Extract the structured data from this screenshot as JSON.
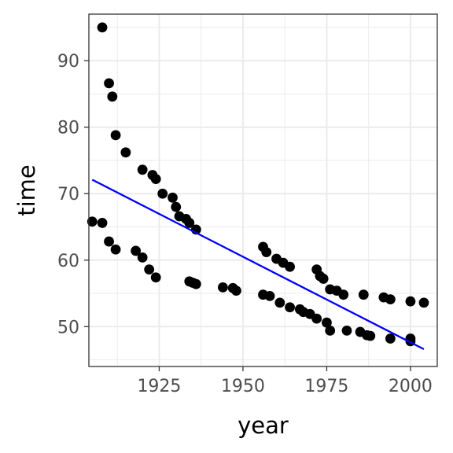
{
  "chart_data": {
    "type": "scatter",
    "title": "",
    "xlabel": "year",
    "ylabel": "time",
    "xlim": [
      1904,
      2008
    ],
    "ylim": [
      44,
      97
    ],
    "xticks": [
      1925,
      1950,
      1975,
      2000
    ],
    "xticks_minor": [
      1912.5,
      1937.5,
      1962.5,
      1987.5
    ],
    "yticks": [
      50,
      60,
      70,
      80,
      90
    ],
    "yticks_minor": [
      45,
      55,
      65,
      75,
      85,
      95
    ],
    "xtick_labels": [
      "1925",
      "1950",
      "1975",
      "2000"
    ],
    "ytick_labels": [
      "50",
      "60",
      "70",
      "80",
      "90"
    ],
    "grid": true,
    "legend": "none",
    "point_color": "#000000",
    "series": [
      {
        "values": [
          {
            "x": 1905,
            "y": 65.8
          },
          {
            "x": 1908,
            "y": 65.6
          },
          {
            "x": 1910,
            "y": 62.8
          },
          {
            "x": 1912,
            "y": 61.6
          },
          {
            "x": 1918,
            "y": 61.4
          },
          {
            "x": 1920,
            "y": 60.4
          },
          {
            "x": 1922,
            "y": 58.6
          },
          {
            "x": 1924,
            "y": 57.4
          },
          {
            "x": 1934,
            "y": 56.8
          },
          {
            "x": 1935,
            "y": 56.6
          },
          {
            "x": 1936,
            "y": 56.4
          },
          {
            "x": 1944,
            "y": 55.9
          },
          {
            "x": 1947,
            "y": 55.8
          },
          {
            "x": 1948,
            "y": 55.4
          },
          {
            "x": 1956,
            "y": 54.8
          },
          {
            "x": 1958,
            "y": 54.6
          },
          {
            "x": 1961,
            "y": 53.6
          },
          {
            "x": 1964,
            "y": 52.9
          },
          {
            "x": 1967,
            "y": 52.6
          },
          {
            "x": 1968,
            "y": 52.2
          },
          {
            "x": 1970,
            "y": 51.9
          },
          {
            "x": 1972,
            "y": 51.2
          },
          {
            "x": 1975,
            "y": 50.6
          },
          {
            "x": 1976,
            "y": 49.4
          },
          {
            "x": 1981,
            "y": 49.4
          },
          {
            "x": 1985,
            "y": 49.2
          },
          {
            "x": 1987,
            "y": 48.7
          },
          {
            "x": 1988,
            "y": 48.6
          },
          {
            "x": 1994,
            "y": 48.2
          },
          {
            "x": 2000,
            "y": 47.8
          },
          {
            "x": 2000,
            "y": 48.2
          },
          {
            "x": 1908,
            "y": 95.0
          },
          {
            "x": 1910,
            "y": 86.6
          },
          {
            "x": 1911,
            "y": 84.6
          },
          {
            "x": 1912,
            "y": 78.8
          },
          {
            "x": 1915,
            "y": 76.2
          },
          {
            "x": 1920,
            "y": 73.6
          },
          {
            "x": 1923,
            "y": 72.8
          },
          {
            "x": 1924,
            "y": 72.2
          },
          {
            "x": 1926,
            "y": 70.0
          },
          {
            "x": 1929,
            "y": 69.4
          },
          {
            "x": 1930,
            "y": 68.0
          },
          {
            "x": 1931,
            "y": 66.6
          },
          {
            "x": 1933,
            "y": 66.2
          },
          {
            "x": 1934,
            "y": 65.6
          },
          {
            "x": 1936,
            "y": 64.6
          },
          {
            "x": 1956,
            "y": 62.0
          },
          {
            "x": 1957,
            "y": 61.2
          },
          {
            "x": 1960,
            "y": 60.2
          },
          {
            "x": 1962,
            "y": 59.6
          },
          {
            "x": 1964,
            "y": 59.0
          },
          {
            "x": 1972,
            "y": 58.6
          },
          {
            "x": 1973,
            "y": 57.6
          },
          {
            "x": 1974,
            "y": 57.2
          },
          {
            "x": 1976,
            "y": 55.6
          },
          {
            "x": 1978,
            "y": 55.4
          },
          {
            "x": 1980,
            "y": 54.8
          },
          {
            "x": 1986,
            "y": 54.8
          },
          {
            "x": 1992,
            "y": 54.4
          },
          {
            "x": 1994,
            "y": 54.1
          },
          {
            "x": 2000,
            "y": 53.8
          },
          {
            "x": 2004,
            "y": 53.6
          }
        ]
      }
    ],
    "trend_line": {
      "color": "#0000ff",
      "x": [
        1905,
        2004
      ],
      "y": [
        72.1,
        46.6
      ]
    }
  }
}
